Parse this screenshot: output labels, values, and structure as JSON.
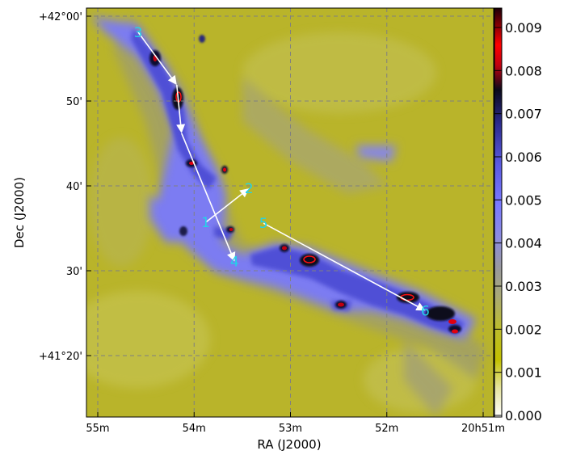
{
  "chart_data": {
    "type": "heatmap",
    "xlabel": "RA (J2000)",
    "ylabel": "Dec (J2000)",
    "x_ticks": [
      {
        "ra_min": 55.0,
        "label": "55m"
      },
      {
        "ra_min": 54.0,
        "label": "54m"
      },
      {
        "ra_min": 53.0,
        "label": "53m"
      },
      {
        "ra_min": 52.0,
        "label": "52m"
      },
      {
        "ra_min": 51.0,
        "label": "20h51m"
      }
    ],
    "y_ticks": [
      {
        "dec_arcmin": 0,
        "label": "+42°00'"
      },
      {
        "dec_arcmin": -10,
        "label": "50'"
      },
      {
        "dec_arcmin": -20,
        "label": "40'"
      },
      {
        "dec_arcmin": -30,
        "label": "30'"
      },
      {
        "dec_arcmin": -40,
        "label": "+41°20'"
      }
    ],
    "grid": true,
    "colorbar": {
      "ticks": [
        "0.009",
        "0.008",
        "0.007",
        "0.006",
        "0.005",
        "0.004",
        "0.003",
        "0.002",
        "0.001",
        "0.000"
      ],
      "range": [
        0.0,
        0.0095
      ],
      "colors": [
        "#ffffff",
        "#b8b400",
        "#c0c050",
        "#9e9e9e",
        "#8080ff",
        "#5050d0",
        "#101040",
        "#ff0000",
        "#2a0008"
      ],
      "placement": "right"
    },
    "points": [
      {
        "id": "1",
        "ra_min": 53.88,
        "dec_arcmin": -24.3
      },
      {
        "id": "2",
        "ra_min": 53.43,
        "dec_arcmin": -20.3
      },
      {
        "id": "3",
        "ra_min": 54.58,
        "dec_arcmin": -1.9
      },
      {
        "id": "4",
        "ra_min": 53.58,
        "dec_arcmin": -28.9
      },
      {
        "id": "5",
        "ra_min": 53.28,
        "dec_arcmin": -24.4
      },
      {
        "id": "6",
        "ra_min": 51.6,
        "dec_arcmin": -34.7
      }
    ],
    "arrows": [
      {
        "from": "3",
        "to_ra_min": 54.18,
        "to_dec_arcmin": -8.1
      },
      {
        "from_ra_min": 54.18,
        "from_dec_arcmin": -8.1,
        "to_ra_min": 54.13,
        "to_dec_arcmin": -13.8
      },
      {
        "from_ra_min": 54.13,
        "from_dec_arcmin": -13.8,
        "to": "4"
      },
      {
        "from": "1",
        "to": "2"
      },
      {
        "from": "5",
        "to": "6"
      }
    ]
  }
}
